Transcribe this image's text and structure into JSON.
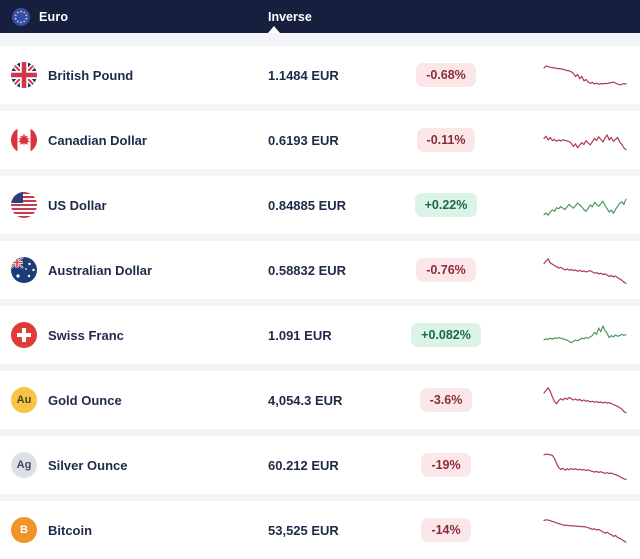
{
  "header": {
    "base_label": "Euro",
    "tab_label": "Inverse"
  },
  "colors": {
    "header_bg": "#161f3d",
    "row_bg": "#ffffff",
    "page_bg": "#f2f4f8",
    "text_dark": "#1f2a4a",
    "badge_down_bg": "#fce7e8",
    "badge_down_text": "#8a2b3d",
    "badge_up_bg": "#dcf3e7",
    "badge_up_text": "#1a6b44",
    "spark_down": "#ae3a4e",
    "spark_up": "#4b9960"
  },
  "rows": [
    {
      "name": "British Pound",
      "icon": "gb-flag",
      "rate": "1.1484 EUR",
      "change": "-0.68%",
      "direction": "down",
      "spark": [
        72,
        78,
        76,
        74,
        73,
        72,
        71,
        70,
        69,
        68,
        66,
        64,
        63,
        60,
        55,
        45,
        52,
        38,
        46,
        32,
        36,
        28,
        24,
        27,
        22,
        25,
        21,
        23,
        22,
        24,
        23,
        25,
        26,
        28,
        25,
        22,
        19,
        21,
        23,
        22
      ]
    },
    {
      "name": "Canadian Dollar",
      "icon": "ca-flag",
      "rate": "0.6193 EUR",
      "change": "-0.11%",
      "direction": "down",
      "spark": [
        55,
        62,
        50,
        58,
        48,
        52,
        46,
        50,
        47,
        51,
        49,
        47,
        45,
        40,
        30,
        38,
        26,
        34,
        42,
        36,
        48,
        40,
        35,
        45,
        55,
        48,
        60,
        52,
        44,
        56,
        66,
        50,
        58,
        46,
        52,
        58,
        44,
        36,
        25,
        20
      ]
    },
    {
      "name": "US Dollar",
      "icon": "us-flag",
      "rate": "0.84885 EUR",
      "change": "+0.22%",
      "direction": "up",
      "spark": [
        20,
        25,
        18,
        28,
        35,
        30,
        42,
        38,
        45,
        40,
        36,
        44,
        52,
        46,
        40,
        48,
        56,
        50,
        44,
        36,
        30,
        40,
        50,
        44,
        58,
        52,
        46,
        54,
        62,
        48,
        38,
        28,
        34,
        24,
        36,
        46,
        55,
        60,
        52,
        68
      ]
    },
    {
      "name": "Australian Dollar",
      "icon": "au-flag",
      "rate": "0.58832 EUR",
      "change": "-0.76%",
      "direction": "down",
      "spark": [
        70,
        78,
        85,
        72,
        68,
        64,
        60,
        56,
        58,
        54,
        50,
        53,
        49,
        52,
        48,
        50,
        46,
        49,
        45,
        47,
        44,
        46,
        48,
        44,
        40,
        42,
        38,
        40,
        36,
        38,
        34,
        30,
        33,
        28,
        31,
        26,
        22,
        18,
        12,
        8
      ]
    },
    {
      "name": "Swiss Franc",
      "icon": "ch-flag",
      "rate": "1.091 EUR",
      "change": "+0.082%",
      "direction": "up",
      "spark": [
        35,
        38,
        36,
        40,
        37,
        41,
        39,
        42,
        40,
        38,
        36,
        34,
        30,
        26,
        30,
        34,
        32,
        36,
        40,
        38,
        42,
        40,
        44,
        48,
        58,
        52,
        72,
        60,
        78,
        64,
        55,
        42,
        48,
        44,
        50,
        46,
        48,
        52,
        49,
        51
      ]
    },
    {
      "name": "Gold Ounce",
      "icon": "gold-coin",
      "icon_label": "Au",
      "icon_bg": "#f6c445",
      "icon_fg": "#4d4115",
      "rate": "4,054.3 EUR",
      "change": "-3.6%",
      "direction": "down",
      "spark": [
        72,
        80,
        88,
        76,
        60,
        45,
        38,
        48,
        54,
        50,
        56,
        52,
        58,
        54,
        50,
        53,
        49,
        52,
        47,
        50,
        46,
        48,
        44,
        46,
        43,
        45,
        42,
        44,
        41,
        43,
        40,
        42,
        39,
        36,
        33,
        30,
        26,
        22,
        14,
        10
      ]
    },
    {
      "name": "Silver Ounce",
      "icon": "silver-coin",
      "icon_label": "Ag",
      "icon_bg": "#dde1e7",
      "icon_fg": "#3f4a5a",
      "rate": "60.212 EUR",
      "change": "-19%",
      "direction": "down",
      "spark": [
        82,
        84,
        83,
        82,
        80,
        70,
        55,
        42,
        36,
        40,
        34,
        38,
        35,
        39,
        36,
        38,
        35,
        37,
        34,
        36,
        33,
        35,
        32,
        30,
        28,
        30,
        27,
        29,
        26,
        24,
        26,
        23,
        25,
        22,
        20,
        17,
        14,
        10,
        7,
        5
      ]
    },
    {
      "name": "Bitcoin",
      "icon": "bitcoin-coin",
      "icon_label": "B",
      "icon_bg": "#f0932b",
      "icon_fg": "#ffffff",
      "rate": "53,525 EUR",
      "change": "-14%",
      "direction": "down",
      "spark": [
        80,
        82,
        81,
        79,
        77,
        75,
        72,
        70,
        68,
        66,
        64,
        65,
        63,
        64,
        62,
        63,
        61,
        62,
        60,
        61,
        59,
        57,
        55,
        52,
        54,
        50,
        52,
        48,
        44,
        40,
        43,
        38,
        35,
        30,
        33,
        27,
        24,
        20,
        16,
        12
      ]
    }
  ]
}
